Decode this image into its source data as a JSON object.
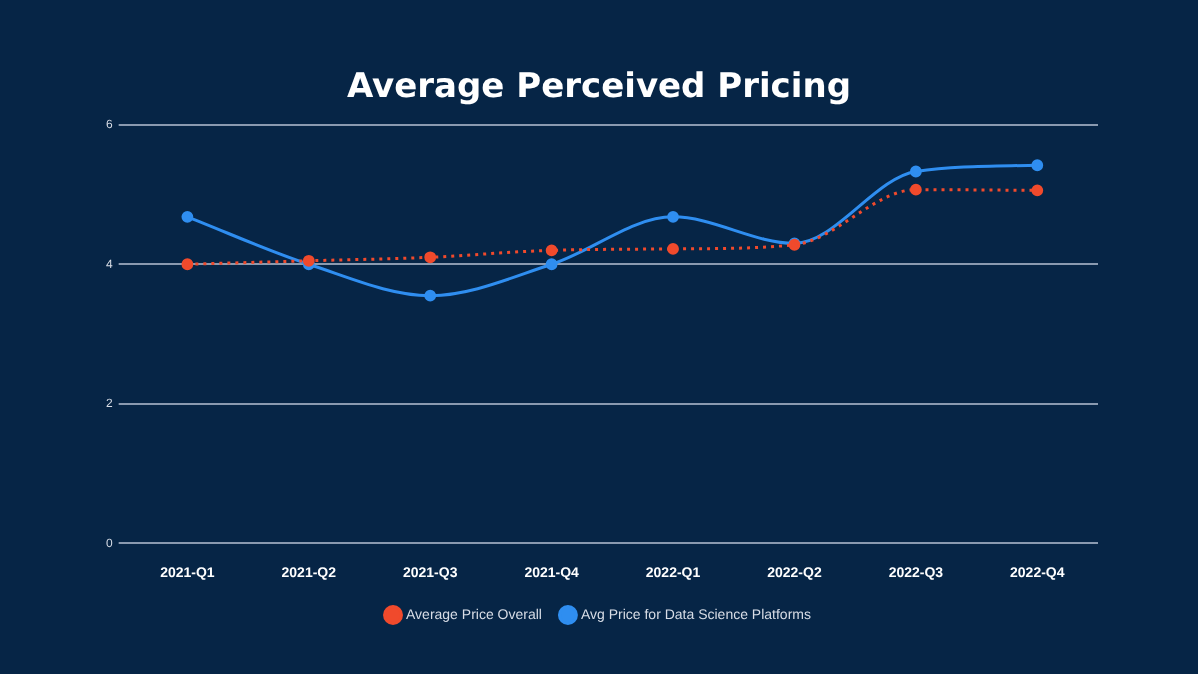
{
  "chart_data": {
    "type": "line",
    "title": "Average Perceived Pricing",
    "categories": [
      "2021-Q1",
      "2021-Q2",
      "2021-Q3",
      "2021-Q4",
      "2022-Q1",
      "2022-Q2",
      "2022-Q3",
      "2022-Q4"
    ],
    "series": [
      {
        "name": "Avg Price for Data Science Platforms",
        "color": "#2f8ef0",
        "values": [
          4.68,
          4.0,
          3.55,
          4.0,
          4.68,
          4.3,
          5.33,
          5.42
        ]
      },
      {
        "name": "Average Price Overall",
        "color": "#f04a2c",
        "line_style": "dotted",
        "values": [
          4.0,
          4.05,
          4.1,
          4.2,
          4.22,
          4.28,
          5.07,
          5.06
        ]
      }
    ],
    "ylim": [
      0,
      6
    ],
    "yticks": [
      0,
      2,
      4,
      6
    ],
    "grid": "y",
    "legend": "bottom",
    "marker": "circle"
  }
}
